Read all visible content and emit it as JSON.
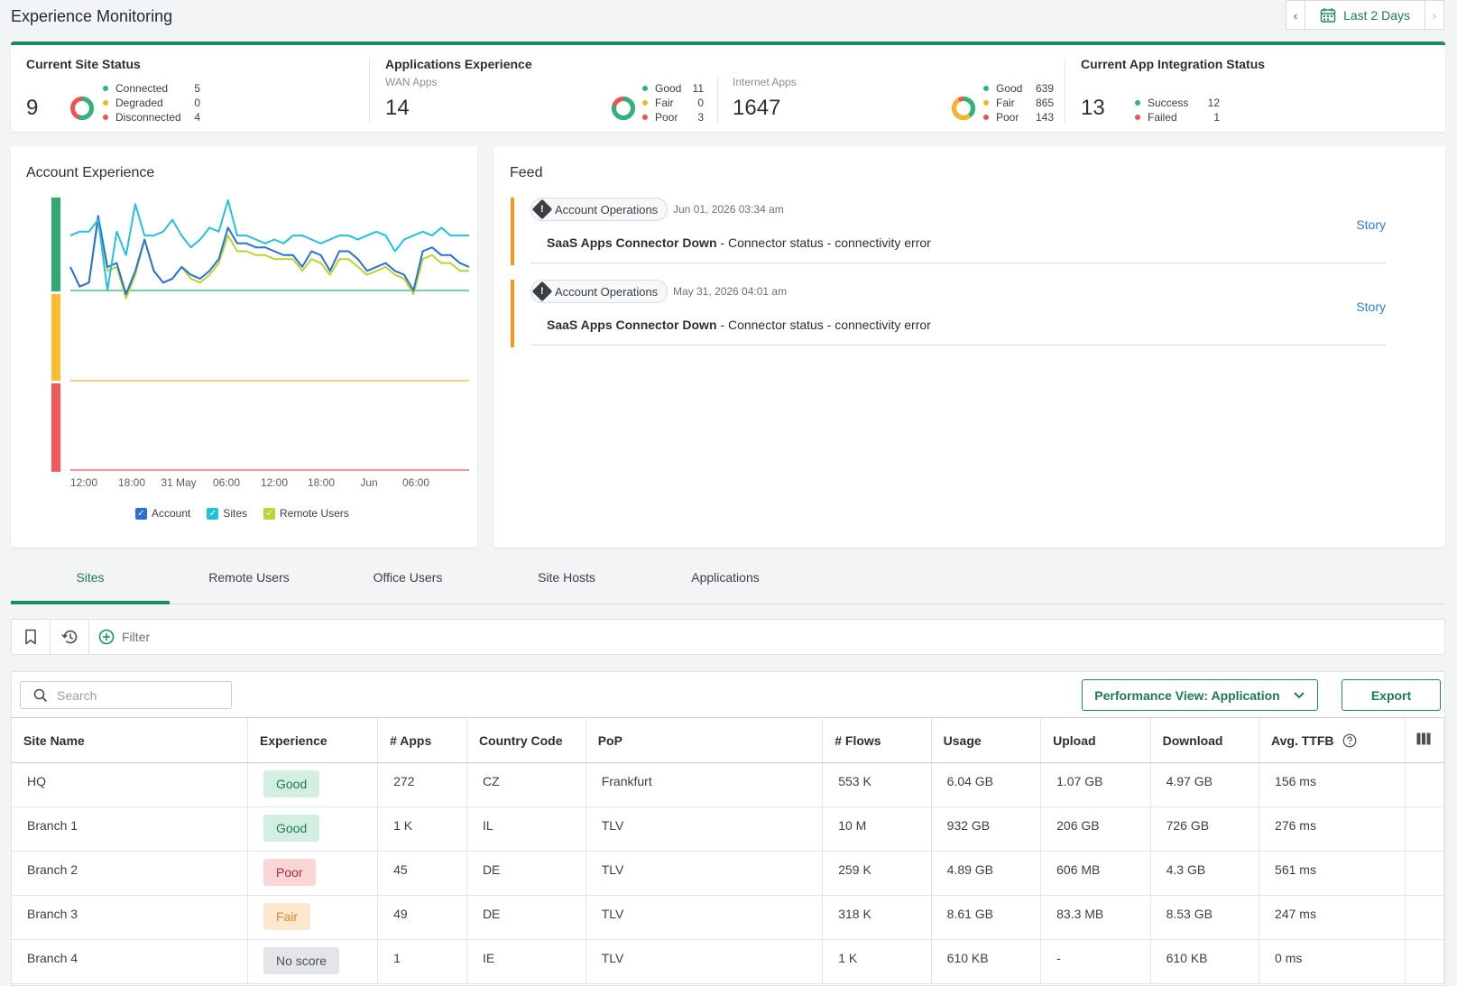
{
  "header": {
    "title": "Experience Monitoring",
    "date_range": "Last 2 Days"
  },
  "summary": {
    "site_status": {
      "title": "Current Site Status",
      "total": "9",
      "items": [
        {
          "label": "Connected",
          "count": "5",
          "color": "#2fb37a"
        },
        {
          "label": "Degraded",
          "count": "0",
          "color": "#f7b52c"
        },
        {
          "label": "Disconnected",
          "count": "4",
          "color": "#ef5350"
        }
      ]
    },
    "apps_experience": {
      "title": "Applications Experience",
      "wan": {
        "label": "WAN Apps",
        "total": "14",
        "items": [
          {
            "label": "Good",
            "count": "11",
            "color": "#2fb37a"
          },
          {
            "label": "Fair",
            "count": "0",
            "color": "#f7b52c"
          },
          {
            "label": "Poor",
            "count": "3",
            "color": "#ef5350"
          }
        ]
      },
      "internet": {
        "label": "Internet Apps",
        "total": "1647",
        "items": [
          {
            "label": "Good",
            "count": "639",
            "color": "#2fb37a"
          },
          {
            "label": "Fair",
            "count": "865",
            "color": "#f7b52c"
          },
          {
            "label": "Poor",
            "count": "143",
            "color": "#ef5350"
          }
        ]
      }
    },
    "integration": {
      "title": "Current App Integration Status",
      "total": "13",
      "items": [
        {
          "label": "Success",
          "count": "12",
          "color": "#2fb37a"
        },
        {
          "label": "Failed",
          "count": "1",
          "color": "#ef5350"
        }
      ]
    }
  },
  "account_experience": {
    "title": "Account Experience",
    "legend": [
      {
        "label": "Account",
        "color": "#2d6fd6"
      },
      {
        "label": "Sites",
        "color": "#25c0d8"
      },
      {
        "label": "Remote Users",
        "color": "#b7d633"
      }
    ],
    "chart_data": {
      "type": "line",
      "x_ticks": [
        "12:00",
        "18:00",
        "31 May",
        "06:00",
        "12:00",
        "18:00",
        "Jun",
        "06:00"
      ],
      "series": [
        {
          "name": "Sites",
          "color": "#25c0d8",
          "values": [
            88,
            89,
            89,
            92,
            74,
            89,
            83,
            96,
            88,
            88,
            89,
            92,
            88,
            85,
            87,
            90,
            89,
            97,
            88,
            88,
            87,
            86,
            87,
            86,
            88,
            88,
            87,
            86,
            87,
            88,
            88,
            87,
            88,
            89,
            88,
            84,
            87,
            88,
            89,
            88,
            90,
            88,
            88,
            88
          ]
        },
        {
          "name": "Account",
          "color": "#2d6fd6",
          "values": [
            80,
            75,
            76,
            93,
            80,
            81,
            73,
            79,
            87,
            79,
            76,
            77,
            80,
            78,
            77,
            79,
            82,
            90,
            86,
            86,
            85,
            85,
            84,
            83,
            83,
            80,
            84,
            83,
            79,
            84,
            84,
            82,
            79,
            80,
            81,
            79,
            78,
            74,
            84,
            85,
            83,
            83,
            81,
            80
          ]
        },
        {
          "name": "Remote Users",
          "color": "#b7d633",
          "values": [
            80,
            75,
            76,
            92,
            79,
            80,
            72,
            78,
            87,
            79,
            76,
            77,
            80,
            77,
            76,
            78,
            81,
            88,
            84,
            84,
            83,
            83,
            82,
            82,
            82,
            79,
            82,
            81,
            78,
            82,
            82,
            80,
            78,
            79,
            80,
            78,
            77,
            73,
            82,
            83,
            81,
            81,
            79,
            79
          ]
        }
      ],
      "threshold_lines": [
        {
          "label": "good",
          "color": "#2fb37a"
        },
        {
          "label": "fair",
          "color": "#f7b52c"
        },
        {
          "label": "poor",
          "color": "#ef5350"
        }
      ]
    }
  },
  "feed": {
    "title": "Feed",
    "items": [
      {
        "category": "Account Operations",
        "date": "Jun 01, 2026 03:34 am",
        "headline": "SaaS Apps Connector Down",
        "detail": " - Connector status - connectivity error",
        "action": "Story"
      },
      {
        "category": "Account Operations",
        "date": "May 31, 2026 04:01 am",
        "headline": "SaaS Apps Connector Down",
        "detail": " - Connector status - connectivity error",
        "action": "Story"
      }
    ]
  },
  "tabs": [
    "Sites",
    "Remote Users",
    "Office Users",
    "Site Hosts",
    "Applications"
  ],
  "filterbar": {
    "filter_label": "Filter"
  },
  "table": {
    "search_placeholder": "Search",
    "perf_view_label": "Performance View: Application",
    "export_label": "Export",
    "columns": [
      "Site Name",
      "Experience",
      "# Apps",
      "Country Code",
      "PoP",
      "# Flows",
      "Usage",
      "Upload",
      "Download",
      "Avg. TTFB"
    ],
    "rows": [
      {
        "site": "HQ",
        "experience": "Good",
        "exp_class": "good",
        "apps": "272",
        "country": "CZ",
        "pop": "Frankfurt",
        "flows": "553 K",
        "usage": "6.04 GB",
        "upload": "1.07 GB",
        "download": "4.97 GB",
        "ttfb": "156 ms"
      },
      {
        "site": "Branch 1",
        "experience": "Good",
        "exp_class": "good",
        "apps": "1 K",
        "country": "IL",
        "pop": "TLV",
        "flows": "10 M",
        "usage": "932 GB",
        "upload": "206 GB",
        "download": "726 GB",
        "ttfb": "276 ms"
      },
      {
        "site": "Branch 2",
        "experience": "Poor",
        "exp_class": "poor",
        "apps": "45",
        "country": "DE",
        "pop": "TLV",
        "flows": "259 K",
        "usage": "4.89 GB",
        "upload": "606 MB",
        "download": "4.3 GB",
        "ttfb": "561 ms"
      },
      {
        "site": "Branch 3",
        "experience": "Fair",
        "exp_class": "fair",
        "apps": "49",
        "country": "DE",
        "pop": "TLV",
        "flows": "318 K",
        "usage": "8.61 GB",
        "upload": "83.3 MB",
        "download": "8.53 GB",
        "ttfb": "247 ms"
      },
      {
        "site": "Branch 4",
        "experience": "No score",
        "exp_class": "none",
        "apps": "1",
        "country": "IE",
        "pop": "TLV",
        "flows": "1 K",
        "usage": "610 KB",
        "upload": "-",
        "download": "610 KB",
        "ttfb": "0 ms"
      }
    ]
  }
}
